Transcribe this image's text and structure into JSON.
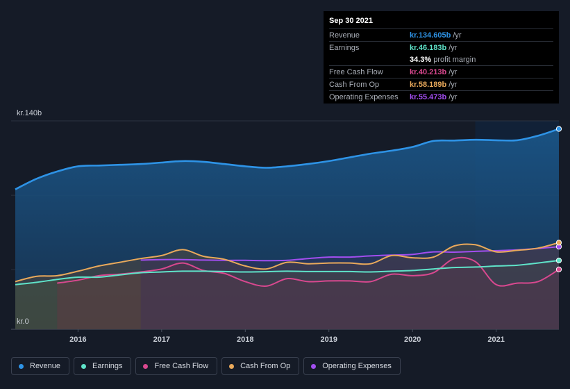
{
  "tooltip": {
    "date": "Sep 30 2021",
    "rows": [
      {
        "label": "Revenue",
        "value": "kr.134.605b",
        "unit": "/yr",
        "color": "#2e93e6"
      },
      {
        "label": "Earnings",
        "value": "kr.46.183b",
        "unit": "/yr",
        "color": "#5fe3c9"
      },
      {
        "label": "",
        "value": "34.3%",
        "unit": "profit margin",
        "color": "#ffffff"
      },
      {
        "label": "Free Cash Flow",
        "value": "kr.40.213b",
        "unit": "/yr",
        "color": "#d9488f"
      },
      {
        "label": "Cash From Op",
        "value": "kr.58.189b",
        "unit": "/yr",
        "color": "#e9a95b"
      },
      {
        "label": "Operating Expenses",
        "value": "kr.55.473b",
        "unit": "/yr",
        "color": "#a24ef0"
      }
    ]
  },
  "legend": [
    {
      "label": "Revenue",
      "color": "#2e93e6"
    },
    {
      "label": "Earnings",
      "color": "#5fe3c9"
    },
    {
      "label": "Free Cash Flow",
      "color": "#d9488f"
    },
    {
      "label": "Cash From Op",
      "color": "#e9a95b"
    },
    {
      "label": "Operating Expenses",
      "color": "#a24ef0"
    }
  ],
  "chart_data": {
    "type": "area",
    "ylabel_top": "kr.140b",
    "ylabel_bottom": "kr.0",
    "ylim": [
      0,
      140
    ],
    "xlim": [
      2015.2,
      2021.75
    ],
    "xticks": [
      2016,
      2017,
      2018,
      2019,
      2020,
      2021
    ],
    "xtick_labels": [
      "2016",
      "2017",
      "2018",
      "2019",
      "2020",
      "2021"
    ],
    "grid": true,
    "series": [
      {
        "name": "Revenue",
        "color": "#2e93e6",
        "x": [
          2015.25,
          2015.5,
          2015.75,
          2016.0,
          2016.25,
          2016.5,
          2016.75,
          2017.0,
          2017.25,
          2017.5,
          2017.75,
          2018.0,
          2018.25,
          2018.5,
          2018.75,
          2019.0,
          2019.25,
          2019.5,
          2019.75,
          2020.0,
          2020.25,
          2020.5,
          2020.75,
          2021.0,
          2021.25,
          2021.5,
          2021.75
        ],
        "values": [
          94,
          101,
          106,
          109.5,
          110,
          110.5,
          111,
          112,
          113,
          112.5,
          111,
          109.5,
          108.5,
          109.5,
          111,
          113,
          115.5,
          118,
          120,
          122.5,
          126.5,
          126.8,
          127.3,
          127,
          127,
          130,
          134.6
        ]
      },
      {
        "name": "Earnings",
        "color": "#5fe3c9",
        "x": [
          2015.25,
          2015.5,
          2015.75,
          2016.0,
          2016.25,
          2016.5,
          2016.75,
          2017.0,
          2017.25,
          2017.5,
          2017.75,
          2018.0,
          2018.25,
          2018.5,
          2018.75,
          2019.0,
          2019.25,
          2019.5,
          2019.75,
          2020.0,
          2020.25,
          2020.5,
          2020.75,
          2021.0,
          2021.25,
          2021.5,
          2021.75
        ],
        "values": [
          30,
          31.5,
          33.5,
          35,
          35,
          36.5,
          38,
          38.5,
          39,
          39,
          38.8,
          38.5,
          38.7,
          39,
          38.8,
          38.8,
          38.8,
          38.5,
          39,
          39.5,
          40.5,
          41.5,
          41.8,
          42.5,
          43,
          44.5,
          46.2
        ]
      },
      {
        "name": "Free Cash Flow",
        "color": "#d9488f",
        "x": [
          2015.75,
          2016.0,
          2016.25,
          2016.5,
          2016.75,
          2017.0,
          2017.25,
          2017.5,
          2017.75,
          2018.0,
          2018.25,
          2018.5,
          2018.75,
          2019.0,
          2019.25,
          2019.5,
          2019.75,
          2020.0,
          2020.25,
          2020.5,
          2020.75,
          2021.0,
          2021.25,
          2021.5,
          2021.75
        ],
        "values": [
          31,
          33,
          36,
          37,
          38.5,
          40.5,
          44.5,
          39.5,
          37.5,
          32,
          29,
          34,
          32,
          32.5,
          32.5,
          32,
          37,
          36,
          38,
          47.5,
          45.5,
          30,
          31,
          32,
          40.2
        ]
      },
      {
        "name": "Cash From Op",
        "color": "#e9a95b",
        "x": [
          2015.25,
          2015.5,
          2015.75,
          2016.0,
          2016.25,
          2016.5,
          2016.75,
          2017.0,
          2017.25,
          2017.5,
          2017.75,
          2018.0,
          2018.25,
          2018.5,
          2018.75,
          2019.0,
          2019.25,
          2019.5,
          2019.75,
          2020.0,
          2020.25,
          2020.5,
          2020.75,
          2021.0,
          2021.25,
          2021.5,
          2021.75
        ],
        "values": [
          32,
          35.5,
          36,
          39,
          42.5,
          45,
          47.5,
          49.5,
          53.5,
          49,
          47,
          42.5,
          40.5,
          45,
          44,
          44.5,
          44.5,
          44,
          49.5,
          48,
          48.5,
          56,
          56.8,
          52,
          53,
          54.5,
          58.2
        ]
      },
      {
        "name": "Operating Expenses",
        "color": "#a24ef0",
        "x": [
          2016.75,
          2017.0,
          2017.25,
          2017.5,
          2017.75,
          2018.0,
          2018.25,
          2018.5,
          2018.75,
          2019.0,
          2019.25,
          2019.5,
          2019.75,
          2020.0,
          2020.25,
          2020.5,
          2020.75,
          2021.0,
          2021.25,
          2021.5,
          2021.75
        ],
        "values": [
          46.5,
          46.8,
          46.8,
          46.5,
          46.3,
          46.3,
          46.1,
          46.3,
          47.5,
          48.5,
          48.5,
          49.3,
          49.8,
          50.3,
          52,
          51.8,
          52.3,
          52.8,
          53.3,
          54.3,
          55.5
        ]
      }
    ]
  }
}
